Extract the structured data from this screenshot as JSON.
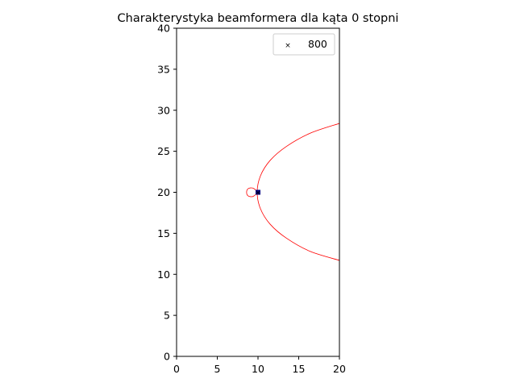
{
  "chart_data": {
    "type": "line",
    "title": "Charakterystyka beamformera dla kąta 0 stopni",
    "xlabel": "",
    "ylabel": "",
    "xlim": [
      0,
      20
    ],
    "ylim": [
      0,
      40
    ],
    "xticks": [
      "0",
      "5",
      "10",
      "15",
      "20"
    ],
    "yticks": [
      "0",
      "5",
      "10",
      "15",
      "20",
      "25",
      "30",
      "35",
      "40"
    ],
    "grid": false,
    "legend": {
      "position": "top-right",
      "entries": [
        {
          "label": "800",
          "marker": "x"
        }
      ]
    },
    "series": [
      {
        "kind": "line",
        "color": "#ff0000",
        "description_curve": "main lobe",
        "x": [
          20.0,
          16.4,
          13.5,
          11.5,
          10.3,
          9.9,
          10.3,
          11.5,
          13.5,
          16.4,
          20.0
        ],
        "y": [
          28.4,
          27.2,
          25.6,
          23.9,
          22.0,
          20.0,
          18.0,
          16.1,
          14.4,
          12.8,
          11.7
        ]
      },
      {
        "kind": "line",
        "color": "#ff0000",
        "x": [
          10.0,
          9.4,
          8.8,
          8.6,
          8.8,
          9.4,
          10.0
        ],
        "y": [
          20.0,
          20.5,
          20.45,
          20.0,
          19.55,
          19.5,
          20.0
        ]
      },
      {
        "kind": "scatter",
        "color": "#000080",
        "marker": "square",
        "x": [
          10
        ],
        "y": [
          20
        ]
      }
    ]
  }
}
